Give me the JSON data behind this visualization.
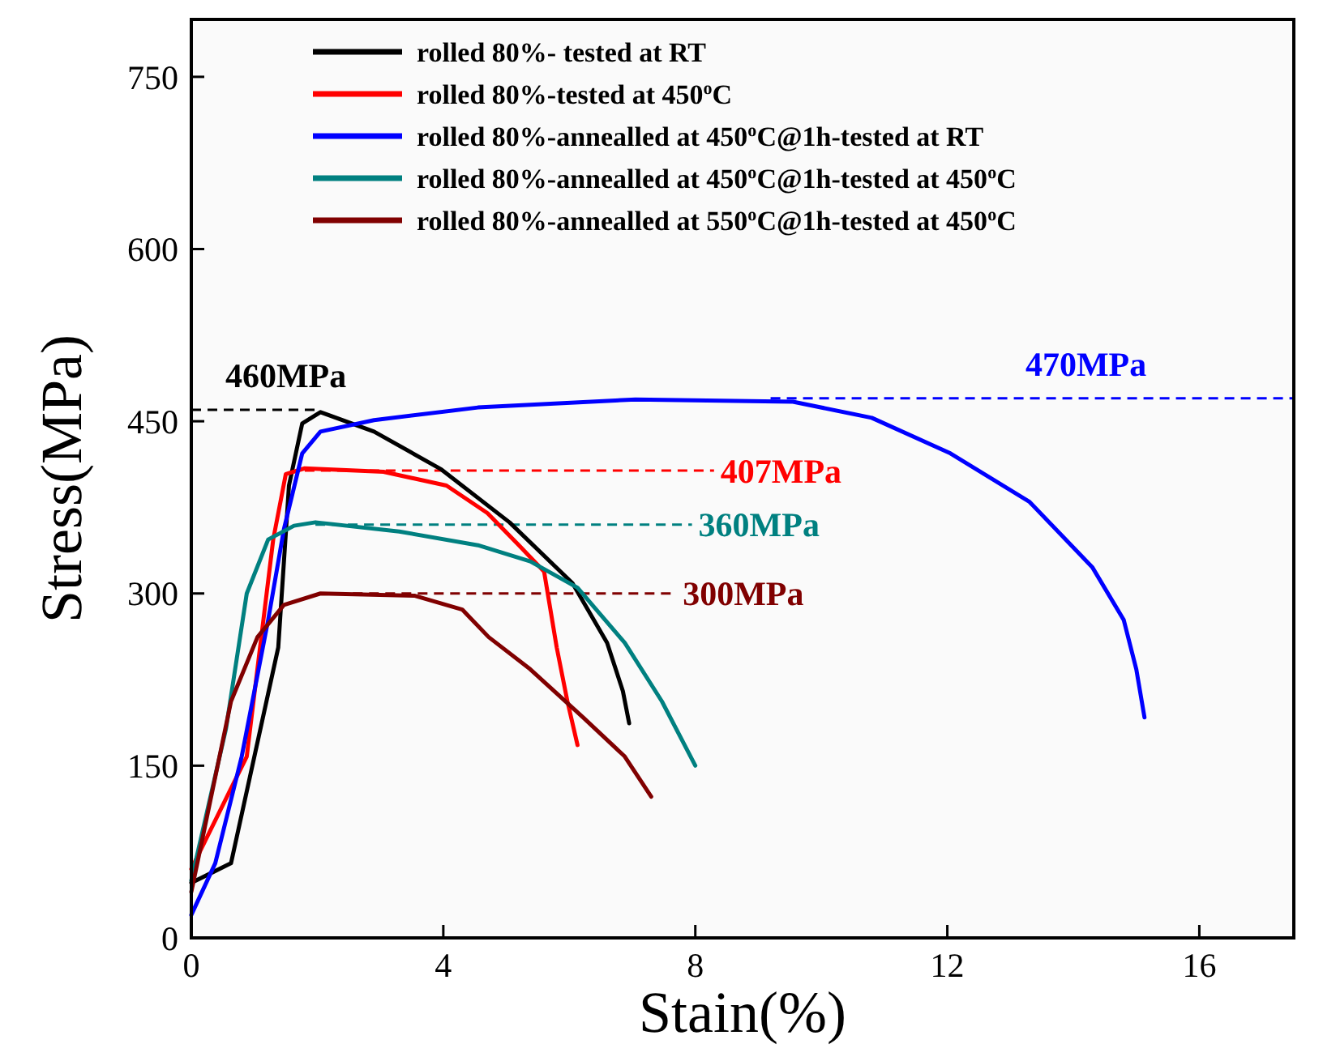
{
  "chart_data": {
    "type": "line",
    "xlabel": "Stain(%)",
    "ylabel": "Stress(MPa)",
    "xlim": [
      0,
      17.5
    ],
    "ylim": [
      0,
      800
    ],
    "xticks": [
      0,
      4,
      8,
      12,
      16
    ],
    "yticks": [
      0,
      150,
      300,
      450,
      600,
      750
    ],
    "legend": "top",
    "grid": false,
    "marker": "none",
    "line_style": "solid",
    "series": [
      {
        "name": "rolled 80%- tested at RT",
        "color": "#000000",
        "x": [
          0,
          0.63,
          1.38,
          1.55,
          1.76,
          2.05,
          2.9,
          3.97,
          5.05,
          6.05,
          6.6,
          6.85,
          6.95
        ],
        "values": [
          48,
          65,
          253,
          394,
          448,
          458,
          441,
          408,
          362,
          309,
          257,
          215,
          187
        ]
      },
      {
        "name": "rolled 80%-tested at 450$^{o}$C",
        "color": "#ff0000",
        "x": [
          0,
          0.88,
          1.3,
          1.5,
          1.8,
          3.05,
          4.05,
          4.7,
          5.2,
          5.6,
          5.8,
          5.97,
          6.13
        ],
        "values": [
          60,
          158,
          347,
          404,
          409,
          406,
          394,
          370,
          342,
          319,
          253,
          206,
          168
        ]
      },
      {
        "name": "rolled 80%-annealled at 450$^{o}$C@1h-tested at RT",
        "color": "#0000ff",
        "x": [
          0,
          0.38,
          0.8,
          1.22,
          1.47,
          1.76,
          2.05,
          2.9,
          4.55,
          7.05,
          9.55,
          10.8,
          12.05,
          13.3,
          14.3,
          14.8,
          15.0,
          15.13
        ],
        "values": [
          20,
          65,
          158,
          277,
          356,
          422,
          441,
          451,
          462,
          469,
          467,
          453,
          422,
          380,
          323,
          277,
          234,
          192
        ]
      },
      {
        "name": "rolled 80%-annealled at 450$^{o}$C@1h-tested at 450$^{o}$C",
        "color": "#008080",
        "x": [
          0,
          0.55,
          0.88,
          1.22,
          1.63,
          1.97,
          3.3,
          4.55,
          5.38,
          6.13,
          6.88,
          7.47,
          8.0
        ],
        "values": [
          50,
          182,
          300,
          347,
          359,
          362,
          354,
          342,
          328,
          305,
          257,
          206,
          150
        ]
      },
      {
        "name": "rolled 80%-annealled at 550$^{o}$C@1h-tested at 450$^{o}$C",
        "color": "#800000",
        "x": [
          0,
          0.63,
          1.05,
          1.47,
          2.05,
          3.55,
          4.3,
          4.72,
          5.38,
          6.22,
          6.88,
          7.3
        ],
        "values": [
          40,
          206,
          262,
          290,
          300,
          298,
          286,
          262,
          234,
          192,
          158,
          123
        ]
      }
    ],
    "ref_lines": [
      {
        "axis": "y",
        "value": 460,
        "color": "#000000",
        "line_style": "dashed"
      },
      {
        "axis": "y",
        "value": 407,
        "color": "#ff0000",
        "line_style": "dashed"
      },
      {
        "axis": "y",
        "value": 470,
        "color": "#0000ff",
        "line_style": "dashed"
      },
      {
        "axis": "y",
        "value": 360,
        "color": "#008080",
        "line_style": "dashed"
      },
      {
        "axis": "y",
        "value": 300,
        "color": "#800000",
        "line_style": "dashed"
      }
    ],
    "annotations": [
      {
        "text": "460MPa",
        "x": 1.5,
        "y": 460
      },
      {
        "text": "407MPa",
        "x": 8.4,
        "y": 407
      },
      {
        "text": "470MPa",
        "x": 14.2,
        "y": 470
      },
      {
        "text": "360MPa",
        "x": 8.05,
        "y": 360
      },
      {
        "text": "300MPa",
        "x": 7.8,
        "y": 300
      }
    ]
  }
}
